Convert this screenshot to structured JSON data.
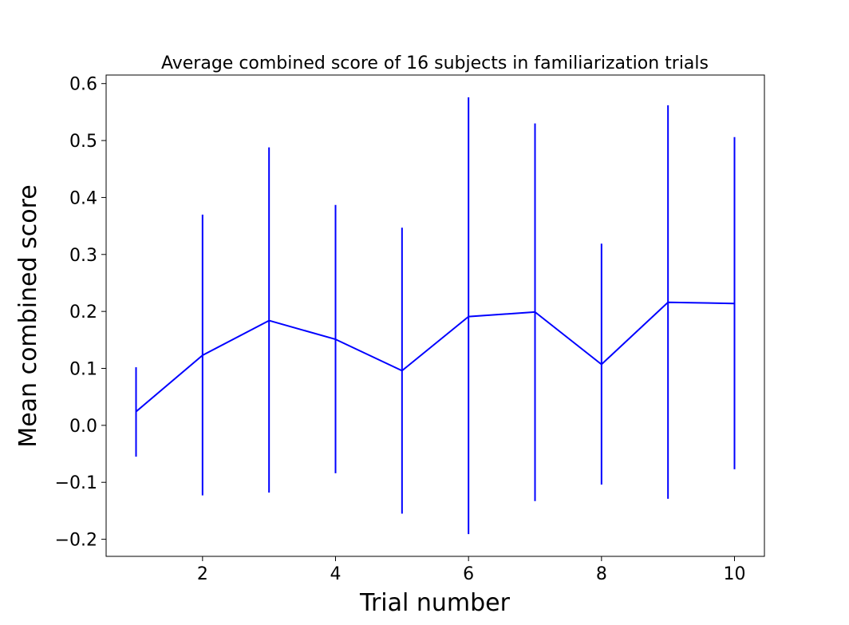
{
  "chart_data": {
    "type": "line",
    "title": "Average combined score of 16 subjects in familiarization trials",
    "xlabel": "Trial number",
    "ylabel": "Mean combined score",
    "xlim": [
      0.55,
      10.45
    ],
    "ylim": [
      -0.23,
      0.615
    ],
    "x_ticks": [
      2,
      4,
      6,
      8,
      10
    ],
    "x_tick_labels": [
      "2",
      "4",
      "6",
      "8",
      "10"
    ],
    "y_ticks": [
      -0.2,
      -0.1,
      0.0,
      0.1,
      0.2,
      0.3,
      0.4,
      0.5,
      0.6
    ],
    "y_tick_labels": [
      "−0.2",
      "−0.1",
      "0.0",
      "0.1",
      "0.2",
      "0.3",
      "0.4",
      "0.5",
      "0.6"
    ],
    "grid": false,
    "legend": "none",
    "series": [
      {
        "color": "#0000ff",
        "x": [
          1,
          2,
          3,
          4,
          5,
          6,
          7,
          8,
          9,
          10
        ],
        "y": [
          0.024,
          0.123,
          0.184,
          0.151,
          0.096,
          0.191,
          0.199,
          0.107,
          0.216,
          0.214
        ],
        "error_low": [
          -0.055,
          -0.123,
          -0.118,
          -0.084,
          -0.155,
          -0.191,
          -0.133,
          -0.104,
          -0.129,
          -0.077
        ],
        "error_high": [
          0.102,
          0.37,
          0.488,
          0.387,
          0.347,
          0.576,
          0.53,
          0.319,
          0.562,
          0.506
        ]
      }
    ]
  }
}
